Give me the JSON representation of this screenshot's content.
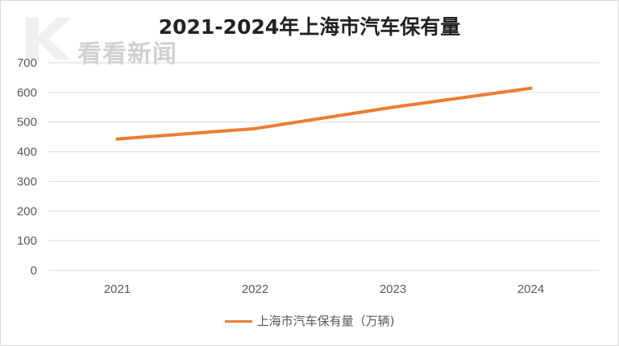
{
  "watermark": {
    "text": "看看新闻"
  },
  "colors": {
    "series": "#ED7D31",
    "grid": "#D9D9D9",
    "text": "#595959"
  },
  "chart_data": {
    "type": "line",
    "title": "2021-2024年上海市汽车保有量",
    "xlabel": "",
    "ylabel": "",
    "categories": [
      "2021",
      "2022",
      "2023",
      "2024"
    ],
    "series": [
      {
        "name": "上海市汽车保有量（万辆)",
        "values": [
          443,
          478,
          550,
          614
        ]
      }
    ],
    "ylim": [
      0,
      700
    ],
    "yticks": [
      "0",
      "100",
      "200",
      "300",
      "400",
      "500",
      "600",
      "700"
    ],
    "grid": true,
    "legend": "bottom"
  }
}
